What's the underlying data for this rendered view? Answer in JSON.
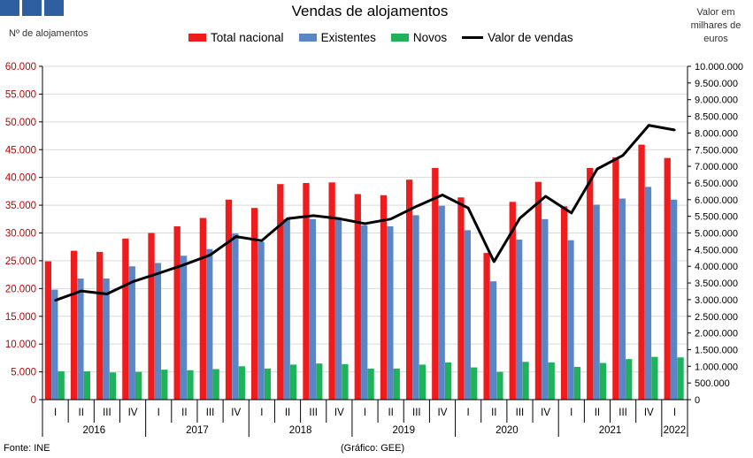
{
  "header": {
    "title": "Vendas de alojamentos",
    "left_axis_unit": "Nº de alojamentos",
    "right_axis_unit_lines": [
      "Valor em",
      "milhares de",
      "euros"
    ]
  },
  "footer": {
    "source": "Fonte: INE",
    "credit": "(Gráfico: GEE)"
  },
  "colors": {
    "total": "#ee1c1c",
    "existentes": "#5b86c6",
    "novos": "#1fb25a",
    "valor": "#000000",
    "left_ticks": "#c00000"
  },
  "chart_data": {
    "type": "bar",
    "title": "Vendas de alojamentos",
    "categories": [
      "I",
      "II",
      "III",
      "IV",
      "I",
      "II",
      "III",
      "IV",
      "I",
      "II",
      "III",
      "IV",
      "I",
      "II",
      "III",
      "IV",
      "I",
      "II",
      "III",
      "IV",
      "I",
      "II",
      "III",
      "IV",
      "I"
    ],
    "years": [
      {
        "label": "2016",
        "count": 4
      },
      {
        "label": "2017",
        "count": 4
      },
      {
        "label": "2018",
        "count": 4
      },
      {
        "label": "2019",
        "count": 4
      },
      {
        "label": "2020",
        "count": 4
      },
      {
        "label": "2021",
        "count": 4
      },
      {
        "label": "2022",
        "count": 1
      }
    ],
    "series": [
      {
        "name": "Total nacional",
        "type": "bar",
        "axis": "left",
        "values": [
          24900,
          26800,
          26600,
          29000,
          30000,
          31200,
          32700,
          36000,
          34500,
          38800,
          39000,
          39100,
          37000,
          36800,
          39600,
          41700,
          36400,
          26400,
          35600,
          39200,
          34800,
          41700,
          43600,
          45900,
          43500
        ]
      },
      {
        "name": "Existentes",
        "type": "bar",
        "axis": "left",
        "values": [
          19800,
          21800,
          21800,
          24000,
          24600,
          25900,
          27100,
          29900,
          28400,
          32500,
          32500,
          32600,
          31400,
          31200,
          33200,
          34900,
          30500,
          21300,
          28800,
          32500,
          28700,
          35100,
          36200,
          38300,
          36000
        ]
      },
      {
        "name": "Novos",
        "type": "bar",
        "axis": "left",
        "values": [
          5100,
          5100,
          4900,
          5000,
          5400,
          5300,
          5500,
          6000,
          5600,
          6300,
          6500,
          6400,
          5600,
          5600,
          6300,
          6700,
          5800,
          5000,
          6800,
          6700,
          5900,
          6600,
          7300,
          7700,
          7600
        ]
      },
      {
        "name": "Valor de vendas",
        "type": "line",
        "axis": "right",
        "values": [
          2980000,
          3260000,
          3170000,
          3540000,
          3790000,
          4050000,
          4340000,
          4890000,
          4770000,
          5430000,
          5520000,
          5430000,
          5280000,
          5420000,
          5800000,
          6140000,
          5750000,
          4140000,
          5440000,
          6100000,
          5600000,
          6920000,
          7330000,
          8230000,
          8090000
        ]
      }
    ],
    "left_axis": {
      "ylim": [
        0,
        60000
      ],
      "ticks": [
        "0",
        "5.000",
        "10.000",
        "15.000",
        "20.000",
        "25.000",
        "30.000",
        "35.000",
        "40.000",
        "45.000",
        "50.000",
        "55.000",
        "60.000"
      ]
    },
    "right_axis": {
      "ylim": [
        0,
        10000000
      ],
      "ticks": [
        "0",
        "500.000",
        "1.000.000",
        "1.500.000",
        "2.000.000",
        "2.500.000",
        "3.000.000",
        "3.500.000",
        "4.000.000",
        "4.500.000",
        "5.000.000",
        "5.500.000",
        "6.000.000",
        "6.500.000",
        "7.000.000",
        "7.500.000",
        "8.000.000",
        "8.500.000",
        "9.000.000",
        "9.500.000",
        "10.000.000"
      ]
    },
    "grid": true,
    "legend_position": "top"
  }
}
